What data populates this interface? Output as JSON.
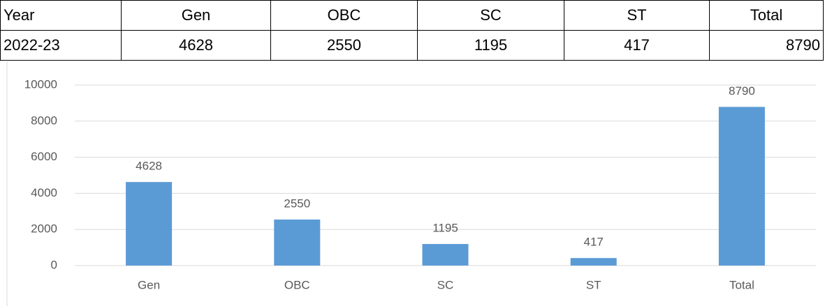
{
  "table": {
    "header": [
      "Year",
      "Gen",
      "OBC",
      "SC",
      "ST",
      "Total"
    ],
    "rows": [
      [
        "2022-23",
        4628,
        2550,
        1195,
        417,
        8790
      ]
    ]
  },
  "chart_data": {
    "type": "bar",
    "categories": [
      "Gen",
      "OBC",
      "SC",
      "ST",
      "Total"
    ],
    "values": [
      4628,
      2550,
      1195,
      417,
      8790
    ],
    "color": "#5b9bd5",
    "ylim": [
      0,
      10000
    ],
    "yticks": [
      0,
      2000,
      4000,
      6000,
      8000,
      10000
    ],
    "grid": true,
    "data_labels": true
  }
}
